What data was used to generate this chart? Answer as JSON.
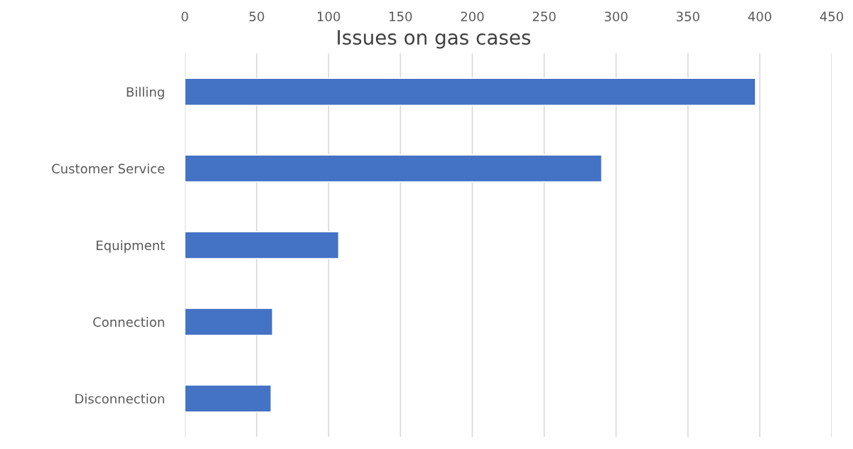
{
  "chart_data": {
    "type": "bar",
    "orientation": "horizontal",
    "title": "Issues on gas cases",
    "categories": [
      "Billing",
      "Customer Service",
      "Equipment",
      "Connection",
      "Disconnection"
    ],
    "values": [
      397,
      290,
      107,
      61,
      60
    ],
    "color": "#4472c4",
    "xlim": [
      0,
      450
    ],
    "xticks": [
      0,
      50,
      100,
      150,
      200,
      250,
      300,
      350,
      400,
      450
    ],
    "grid": "x"
  }
}
